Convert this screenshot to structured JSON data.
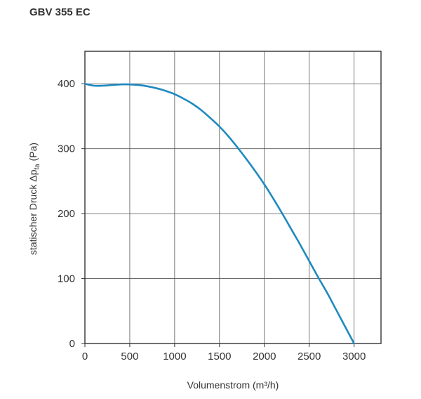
{
  "chart_data": {
    "type": "line",
    "title": "GBV 355 EC",
    "xlabel": "Volumenstrom (m³/h)",
    "ylabel": {
      "prefix": "statischer Druck Δp",
      "subscript": "fa",
      "suffix": " (Pa)"
    },
    "xlim": [
      0,
      3300
    ],
    "ylim": [
      0,
      450
    ],
    "xticks": [
      0,
      500,
      1000,
      1500,
      2000,
      2500,
      3000
    ],
    "yticks": [
      0,
      100,
      200,
      300,
      400
    ],
    "grid": true,
    "series": [
      {
        "color": "#1f8ac0",
        "x": [
          0,
          100,
          200,
          300,
          400,
          500,
          600,
          700,
          800,
          900,
          1000,
          1100,
          1200,
          1300,
          1400,
          1500,
          1600,
          1700,
          1800,
          1900,
          2000,
          2100,
          2200,
          2300,
          2400,
          2500,
          2600,
          2700,
          2800,
          2900,
          3000
        ],
        "y": [
          400,
          397,
          397,
          398,
          399,
          399,
          398,
          396,
          393,
          389,
          384,
          377,
          369,
          359,
          347,
          334,
          319,
          302,
          284,
          265,
          245,
          223,
          200,
          176,
          152,
          127,
          102,
          78,
          52,
          26,
          0
        ]
      }
    ]
  }
}
